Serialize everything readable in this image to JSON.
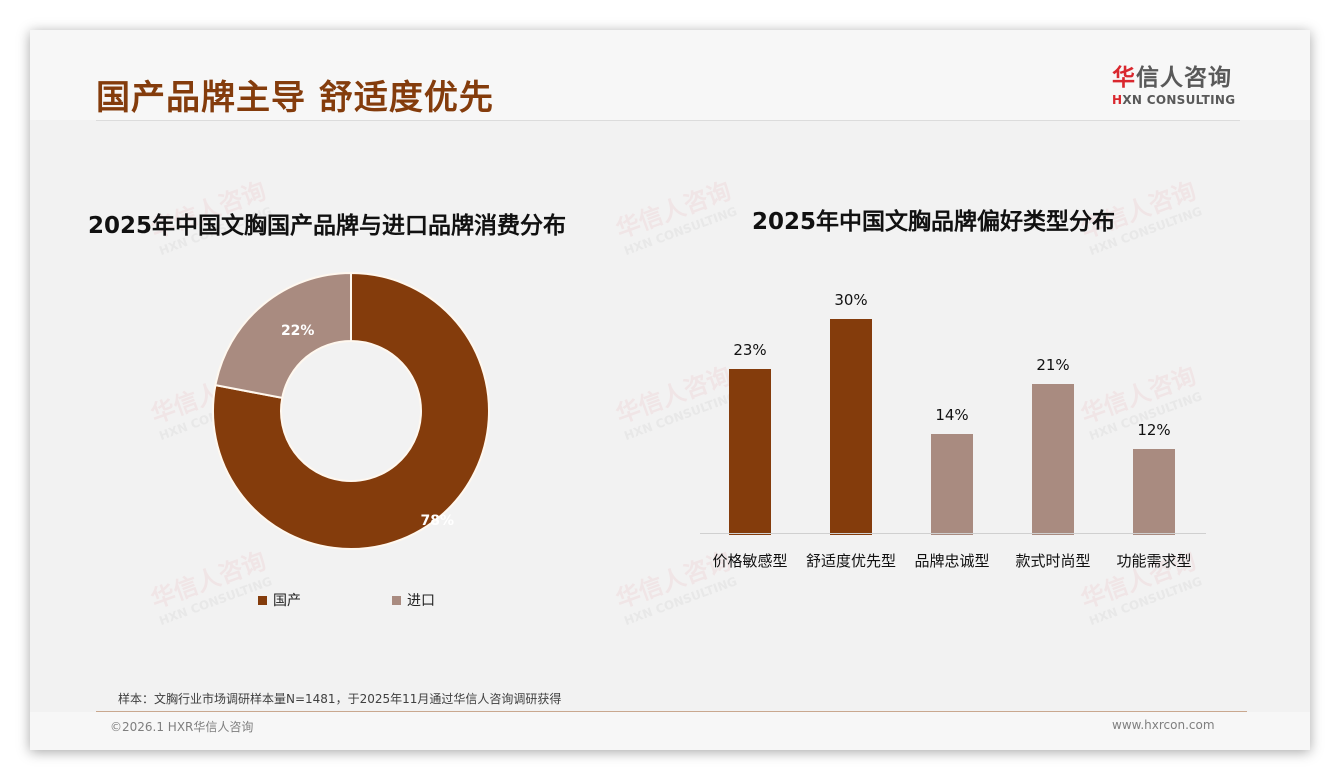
{
  "header": {
    "title": "国产品牌主导 舒适度优先",
    "logo": {
      "cn_accent": "华",
      "cn_rest": "信人咨询",
      "en_accent": "H",
      "en_rest": "XN CONSULTING"
    }
  },
  "watermark": {
    "cn": "华信人咨询",
    "en": "HXN CONSULTING"
  },
  "left_chart": {
    "title": "2025年中国文胸国产品牌与进口品牌消费分布",
    "legend": [
      {
        "label": "国产",
        "color": "#843c0c"
      },
      {
        "label": "进口",
        "color": "#a98b80"
      }
    ]
  },
  "right_chart": {
    "title": "2025年中国文胸品牌偏好类型分布"
  },
  "chart_data": [
    {
      "type": "pie",
      "subtype": "donut",
      "title": "2025年中国文胸国产品牌与进口品牌消费分布",
      "categories": [
        "国产",
        "进口"
      ],
      "values": [
        78,
        22
      ],
      "labels": [
        "78%",
        "22%"
      ],
      "colors": [
        "#843c0c",
        "#a98b80"
      ],
      "legend_position": "bottom"
    },
    {
      "type": "bar",
      "title": "2025年中国文胸品牌偏好类型分布",
      "categories": [
        "价格敏感型",
        "舒适度优先型",
        "品牌忠诚型",
        "款式时尚型",
        "功能需求型"
      ],
      "values": [
        23,
        30,
        14,
        21,
        12
      ],
      "labels": [
        "23%",
        "30%",
        "14%",
        "21%",
        "12%"
      ],
      "colors": [
        "#843c0c",
        "#843c0c",
        "#a98b80",
        "#a98b80",
        "#a98b80"
      ],
      "xlabel": "",
      "ylabel": "",
      "ylim": [
        0,
        30
      ],
      "grid": false
    }
  ],
  "footer": {
    "note": "样本：文胸行业市场调研样本量N=1481，于2025年11月通过华信人咨询调研获得",
    "copyright": "©2026.1 HXR华信人咨询",
    "website": "www.hxrcon.com"
  }
}
